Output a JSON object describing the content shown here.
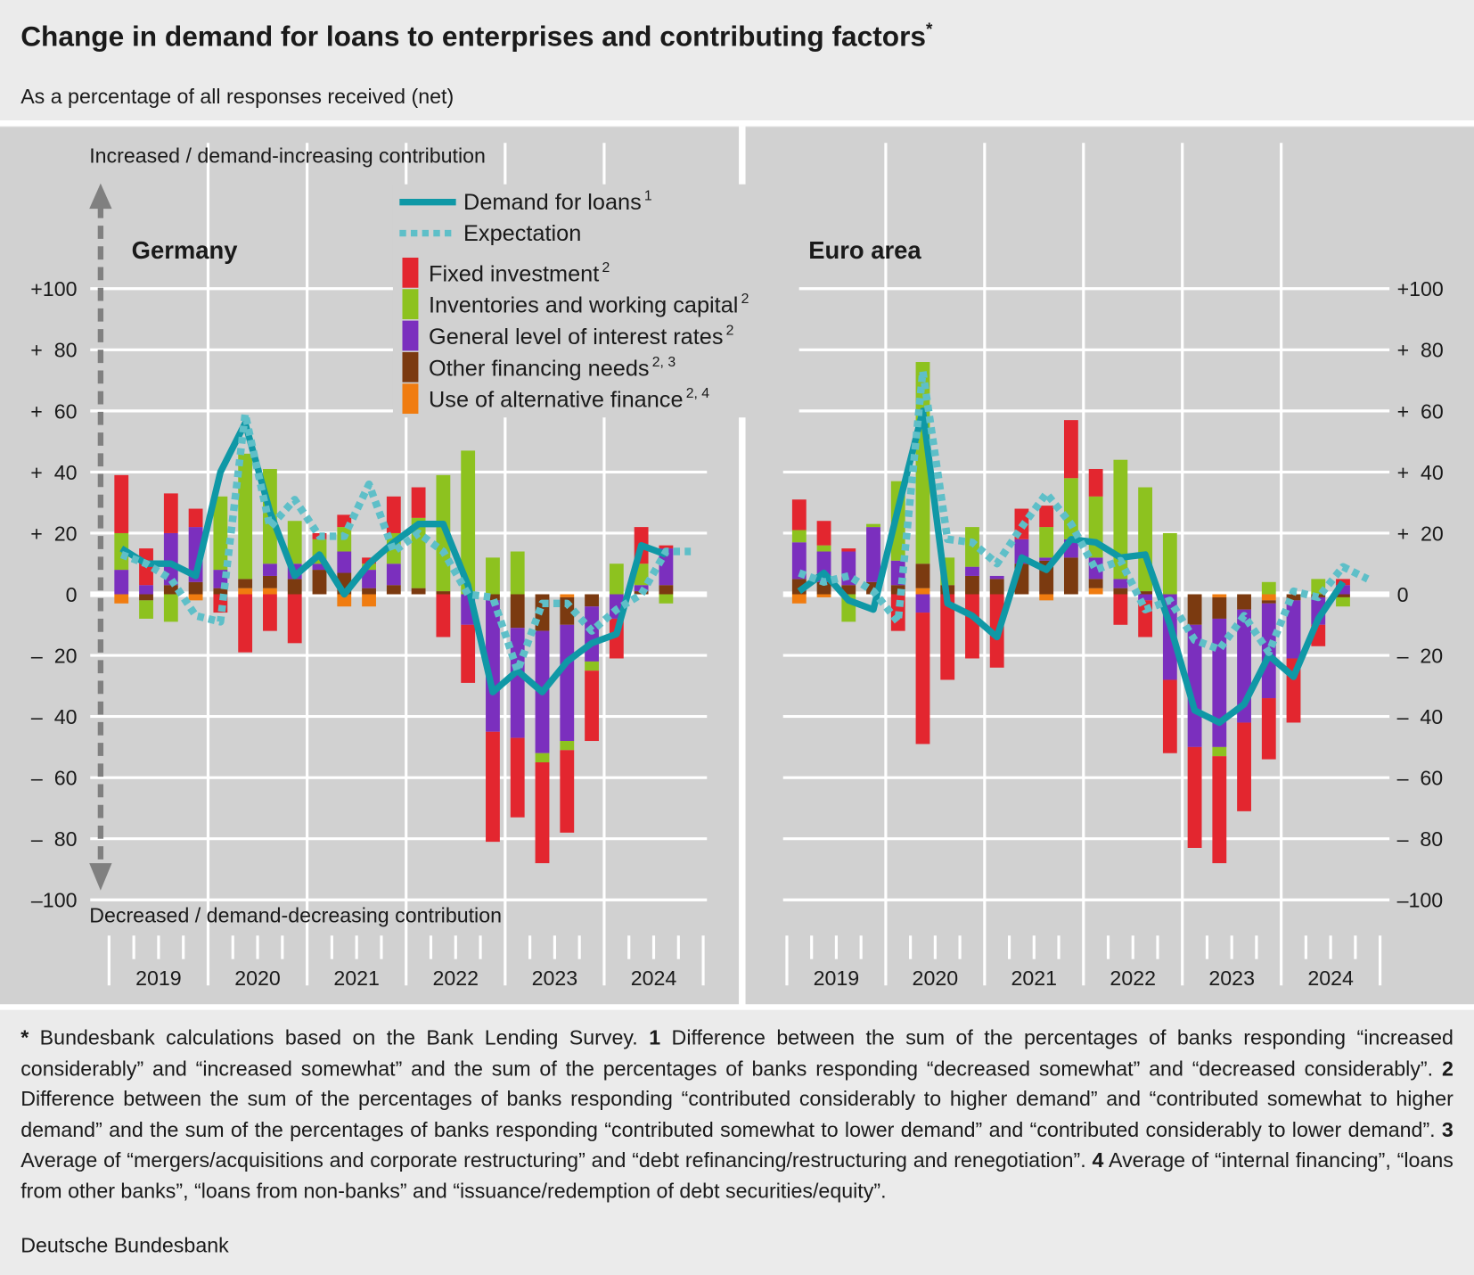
{
  "chart_data": {
    "type": "bar_line",
    "title": "Change in demand for loans to enterprises and contributing factors",
    "title_note": "*",
    "subtitle": "As a percentage of all responses received (net)",
    "y_top_label": "Increased / demand-increasing contribution",
    "y_bottom_label": "Decreased / demand-decreasing contribution",
    "categories": [
      null,
      null,
      null,
      null,
      null,
      null,
      null,
      null,
      null,
      null,
      null,
      null,
      null,
      null,
      null,
      null,
      null,
      null,
      null,
      null,
      null,
      null,
      null,
      null
    ],
    "year_labels": [
      "2019",
      "2020",
      "2021",
      "2022",
      "2023",
      "2024"
    ],
    "ylim": [
      -100,
      100
    ],
    "yticks": [
      {
        "value": 100,
        "label": "+100"
      },
      {
        "value": 80,
        "label": "+  80"
      },
      {
        "value": 60,
        "label": "+  60"
      },
      {
        "value": 40,
        "label": "+  40"
      },
      {
        "value": 20,
        "label": "+  20"
      },
      0,
      {
        "value": -20,
        "label": "–  20"
      },
      {
        "value": -40,
        "label": "–  40"
      },
      {
        "value": -60,
        "label": "–  60"
      },
      {
        "value": -80,
        "label": "–  80"
      },
      {
        "value": -100,
        "label": "–100"
      }
    ],
    "grid": true,
    "series": [
      {
        "name": "Demand for loans",
        "note": "1",
        "color": "#0f98a6",
        "type": "line"
      },
      {
        "name": "Expectation",
        "color": "#5ebfc8",
        "type": "line",
        "dashed": true
      },
      {
        "name": "Fixed investment",
        "note": "2",
        "color": "#e3262f",
        "type": "bar"
      },
      {
        "name": "Inventories and working capital",
        "note": "2",
        "color": "#8dc21f",
        "type": "bar"
      },
      {
        "name": "General level of interest rates",
        "note": "2",
        "color": "#7b2fbe",
        "type": "bar"
      },
      {
        "name": "Other financing needs",
        "note": "2, 3",
        "color": "#7b3a10",
        "type": "bar"
      },
      {
        "name": "Use of alternative finance",
        "note": "2, 4",
        "color": "#f07c10",
        "type": "bar"
      }
    ],
    "panels": [
      {
        "title": "Germany",
        "values": [
          [
            15,
            10,
            10,
            6,
            40,
            56,
            27,
            6,
            13,
            0,
            10,
            17,
            23,
            23,
            3,
            -32,
            -25,
            -32,
            -22,
            -16,
            -13,
            16,
            13,
            null
          ],
          [
            13,
            10,
            5,
            -7,
            -9,
            59,
            22,
            31,
            19,
            19,
            36,
            14,
            20,
            14,
            0,
            -1,
            -25,
            -3,
            -3,
            -12,
            -5,
            0,
            14,
            14
          ],
          [
            19,
            12,
            13,
            6,
            -6,
            -19,
            -12,
            -16,
            2,
            4,
            2,
            12,
            10,
            -14,
            -19,
            -36,
            -26,
            -33,
            -27,
            -23,
            -13,
            12,
            1,
            null
          ],
          [
            12,
            -6,
            -9,
            0,
            24,
            41,
            31,
            14,
            8,
            8,
            2,
            10,
            23,
            38,
            47,
            12,
            14,
            -3,
            -3,
            -3,
            10,
            7,
            -3,
            null
          ],
          [
            8,
            3,
            17,
            18,
            6,
            0,
            4,
            5,
            2,
            7,
            6,
            7,
            0,
            0,
            -10,
            -43,
            -36,
            -40,
            -38,
            -18,
            -8,
            2,
            12,
            null
          ],
          [
            0,
            -2,
            3,
            4,
            2,
            3,
            4,
            5,
            8,
            7,
            2,
            3,
            2,
            1,
            0,
            -2,
            -11,
            -12,
            -9,
            -4,
            0,
            1,
            3,
            null
          ],
          [
            -3,
            0,
            0,
            -2,
            0,
            2,
            2,
            0,
            0,
            -4,
            -4,
            0,
            0,
            0,
            0,
            0,
            0,
            0,
            -1,
            0,
            0,
            0,
            0,
            null
          ]
        ]
      },
      {
        "title": "Euro area",
        "values": [
          [
            1,
            7,
            -2,
            -5,
            28,
            60,
            -3,
            -7,
            -14,
            12,
            8,
            18,
            17,
            12,
            13,
            -10,
            -38,
            -42,
            -36,
            -20,
            -27,
            -8,
            4,
            null
          ],
          [
            7,
            4,
            6,
            1,
            -9,
            73,
            18,
            17,
            10,
            22,
            33,
            23,
            8,
            11,
            -5,
            -2,
            -15,
            -18,
            -7,
            -19,
            1,
            -1,
            9,
            5
          ],
          [
            10,
            8,
            1,
            0,
            -12,
            -43,
            -28,
            -21,
            -24,
            10,
            7,
            19,
            9,
            -10,
            -12,
            -24,
            -33,
            -35,
            -29,
            -20,
            -21,
            -7,
            2,
            null
          ],
          [
            4,
            2,
            -9,
            1,
            26,
            66,
            9,
            13,
            0,
            0,
            10,
            20,
            20,
            39,
            34,
            20,
            0,
            -3,
            0,
            4,
            0,
            5,
            -3,
            null
          ],
          [
            12,
            10,
            11,
            18,
            8,
            -6,
            0,
            3,
            1,
            8,
            1,
            6,
            7,
            3,
            -2,
            -28,
            -40,
            -42,
            -37,
            -31,
            -19,
            -9,
            3,
            null
          ],
          [
            5,
            4,
            3,
            4,
            3,
            8,
            3,
            6,
            5,
            10,
            11,
            12,
            3,
            2,
            1,
            0,
            -10,
            -7,
            -5,
            -1,
            -2,
            -1,
            -1,
            null
          ],
          [
            -3,
            -1,
            0,
            0,
            0,
            2,
            0,
            0,
            0,
            0,
            -2,
            0,
            2,
            0,
            0,
            0,
            0,
            -1,
            0,
            -2,
            0,
            0,
            0,
            null
          ]
        ]
      }
    ],
    "footnotes": [
      {
        "marker": "*",
        "text": "Bundesbank calculations based on the Bank Lending Survey."
      },
      {
        "marker": "1",
        "text": "Difference between the sum of the percentages of banks responding “increased considerably” and “increased somewhat” and the sum of the percentages of banks responding “decreased somewhat” and “decreased considerably”."
      },
      {
        "marker": "2",
        "text": "Difference between the sum of the percentages of banks responding “contributed considerably to higher demand” and “contributed somewhat to higher demand” and the sum of the percentages of banks responding “contributed somewhat to lower demand” and “contributed considerably to lower demand”."
      },
      {
        "marker": "3",
        "text": "Average of “mergers/acquisitions and corporate restructuring” and “debt refinancing/restructuring and renegotiation”."
      },
      {
        "marker": "4",
        "text": "Average of “internal financing”, “loans from other banks”, “loans from non-banks” and “issuance/redemption of debt securities/equity”."
      }
    ],
    "source": "Deutsche Bundesbank"
  }
}
